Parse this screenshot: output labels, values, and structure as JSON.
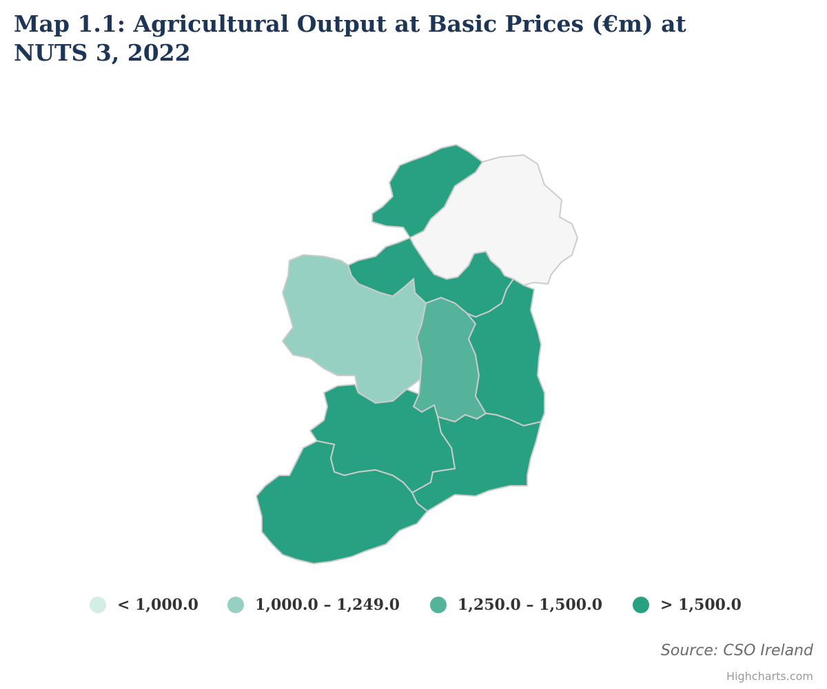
{
  "title": "Map 1.1: Agricultural Output at Basic Prices (€m) at NUTS 3, 2022",
  "legend": [
    {
      "label": "< 1,000.0",
      "color": "#d4ede6"
    },
    {
      "label": "1,000.0 – 1,249.0",
      "color": "#95d0c2"
    },
    {
      "label": "1,250.0 – 1,500.0",
      "color": "#55b39c"
    },
    {
      "label": "> 1,500.0",
      "color": "#28a183"
    }
  ],
  "colors": {
    "no_data": "#f6f6f6",
    "border": "#cccccc"
  },
  "source": "Source: CSO Ireland",
  "credits": "Highcharts.com"
}
